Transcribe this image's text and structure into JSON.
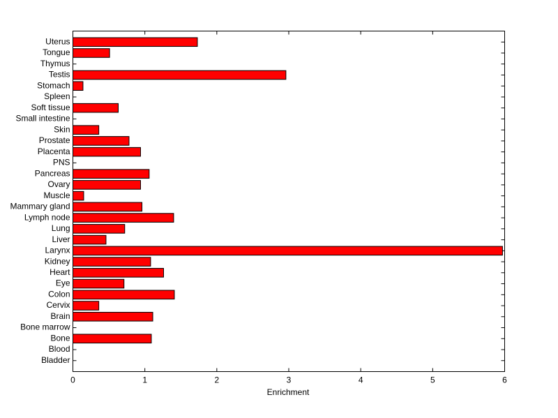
{
  "chart_data": {
    "type": "barh",
    "xlabel": "Enrichment",
    "categories": [
      "Bladder",
      "Blood",
      "Bone",
      "Bone marrow",
      "Brain",
      "Cervix",
      "Colon",
      "Eye",
      "Heart",
      "Kidney",
      "Larynx",
      "Liver",
      "Lung",
      "Lymph node",
      "Mammary gland",
      "Muscle",
      "Ovary",
      "Pancreas",
      "PNS",
      "Placenta",
      "Prostate",
      "Skin",
      "Small intestine",
      "Soft tissue",
      "Spleen",
      "Stomach",
      "Testis",
      "Thymus",
      "Tongue",
      "Uterus"
    ],
    "values": [
      0,
      0,
      1.09,
      0,
      1.11,
      0.36,
      1.41,
      0.71,
      1.26,
      1.08,
      5.97,
      0.46,
      0.72,
      1.4,
      0.96,
      0.15,
      0.94,
      1.06,
      0,
      0.94,
      0.78,
      0.36,
      0,
      0.63,
      0,
      0.14,
      2.96,
      0,
      0.51,
      1.73
    ],
    "color": "#ff0000",
    "xlim": [
      0,
      6
    ],
    "xticks": [
      0,
      1,
      2,
      3,
      4,
      5,
      6
    ]
  }
}
